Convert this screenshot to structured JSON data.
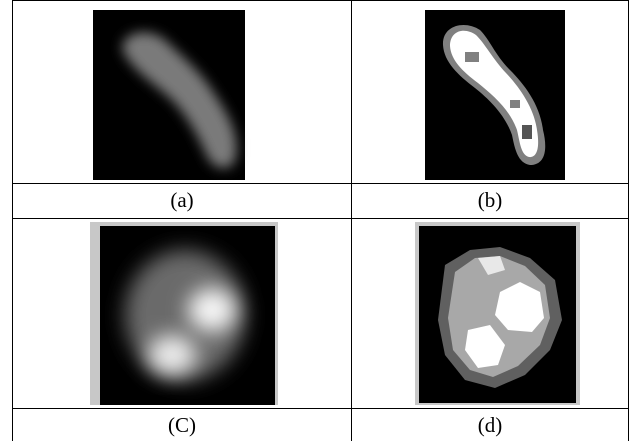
{
  "figure": {
    "captions": [
      "(a)",
      "(b)",
      "(C)",
      "(d)"
    ]
  }
}
